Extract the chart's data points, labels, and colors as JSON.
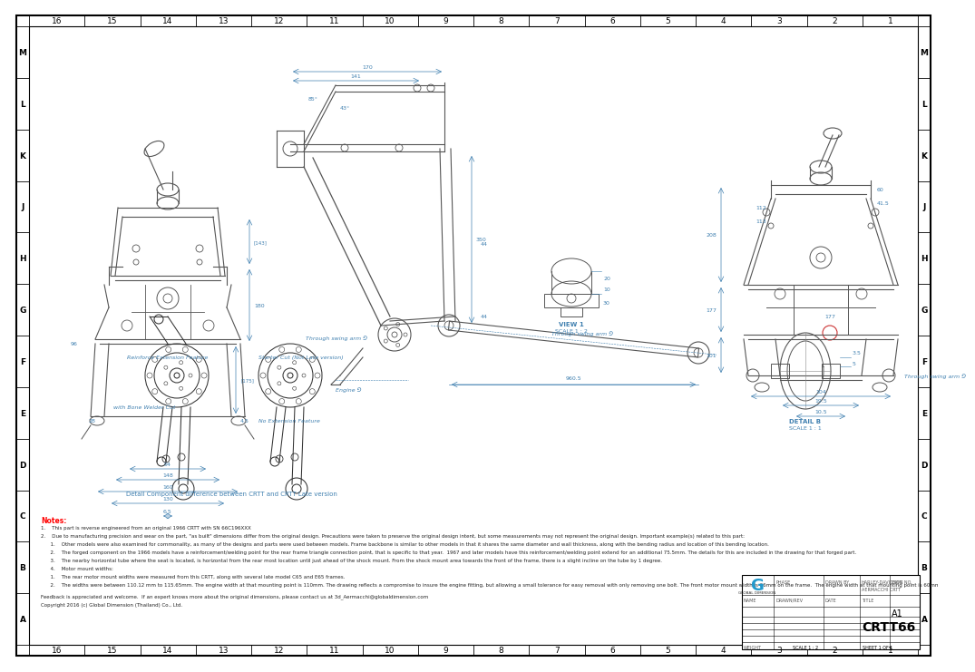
{
  "bg_color": "#ffffff",
  "line_color": "#000000",
  "dim_color": "#4080b0",
  "gray_color": "#555555",
  "light_gray": "#aaaaaa",
  "title": "CRTT66",
  "sheet": "A1",
  "row_labels": [
    "M",
    "L",
    "K",
    "J",
    "H",
    "G",
    "F",
    "E",
    "D",
    "C",
    "B",
    "A"
  ],
  "col_labels": [
    "16",
    "15",
    "14",
    "13",
    "12",
    "11",
    "10",
    "9",
    "8",
    "7",
    "6",
    "5",
    "4",
    "3",
    "2",
    "1"
  ],
  "notes_title": "Notes:",
  "note1": "1.    This part is reverse engineered from an original 1966 CRTT with SN 66C196XXX",
  "note2": "2.    Due to manufacturing precision and wear on the part, \"as built\" dimensions differ from the original design. Precautions were taken to preserve the original design intent, but some measurements may not represent the original design. Important example(s) related to this part:",
  "note2a": "      1.    Other models were also examined for commonality, as many of the designs and parts were used between models. Frame backbone is similar to other models in that it shares the same diameter and wall thickness, along with the bending radius and location of this bending location.",
  "note2b": "      2.    The forged component on the 1966 models have a reinforcement/welding point for the rear frame triangle connection point, that is specific to that year.  1967 and later models have this reinforcement/welding point extend for an additional 75.5mm. The details for this are included in the drawing for that forged part.",
  "note2c": "      3.    The nearby horizontal tube where the seat is located, is horizontal from the rear most location until just ahead of the shock mount. From the shock mount area towards the front of the frame, there is a slight incline on the tube by 1 degree.",
  "note2d": "      4.    Motor mount widths:",
  "note3": "      1.    The rear motor mount widths were measured from this CRTT, along with several late model C65 and E65 frames.",
  "note4": "      2.    The widths were between 110.12 mm to 115.65mm. The engine width at that mounting point is 110mm. The drawing reflects a compromise to insure the engine fitting, but allowing a small tolerance for easy removal with only removing one bolt. The front motor mount width is 66mm on the frame.  The engine width at that mounting point is 60mm.",
  "feedback": "Feedback is appreciated and welcome.  If an expert knows more about the original dimensions, please contact us at 3d_Aermacchi@globaldimension.com",
  "copyright": "Copyright 2016 (c) Global Dimension (Thailand) Co., Ltd.",
  "detail_b_label": "DETAIL B",
  "detail_b_scale": "SCALE 1 : 1",
  "view1_label": "VIEW 1",
  "view1_scale": "SCALE 1 : 2",
  "through_swing_label": "Through swing arm ⅁",
  "engine_label": "Engine ⅁",
  "reinforce_label": "Reinforce Extension Feature",
  "starter_label": "Starter Cut (Not Late version)",
  "with_bone_label": "with Bone Welder Cut",
  "no_extension_label": "No Extension Feature",
  "detail_comp_label": "Detail Component difference between CRTT and CRTT Late version"
}
